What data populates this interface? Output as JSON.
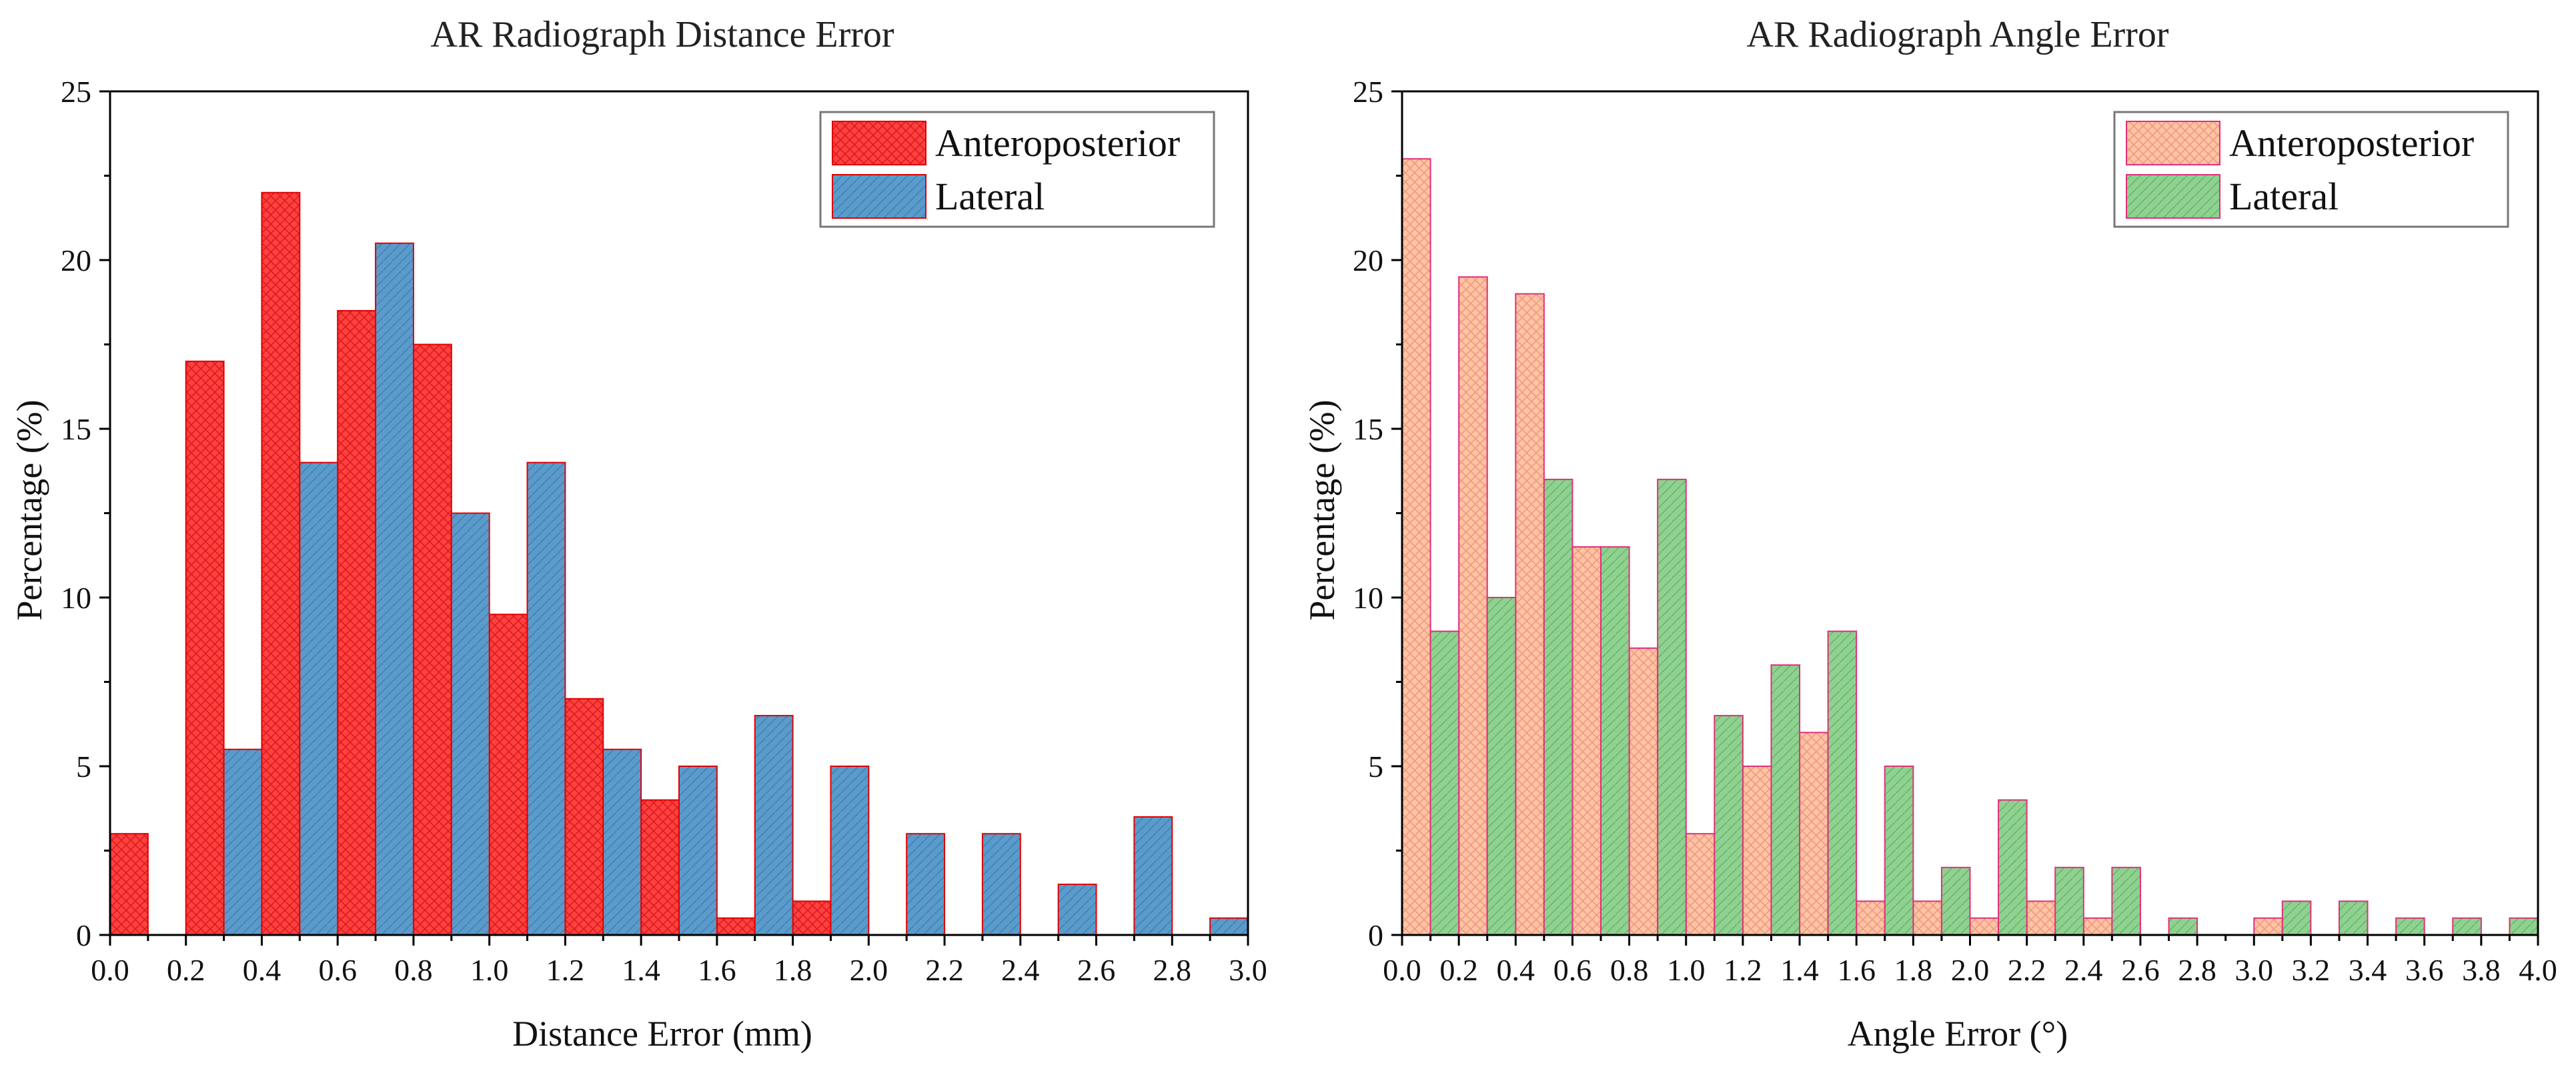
{
  "chart_data": [
    {
      "type": "bar",
      "title": "AR Radiograph Distance Error",
      "xlabel": "Distance Error (mm)",
      "ylabel": "Percentage (%)",
      "xlim": [
        0,
        3.0
      ],
      "ylim": [
        0,
        25
      ],
      "bin_width": 0.1,
      "x_ticks": [
        "0.0",
        "0.2",
        "0.4",
        "0.6",
        "0.8",
        "1.0",
        "1.2",
        "1.4",
        "1.6",
        "1.8",
        "2.0",
        "2.2",
        "2.4",
        "2.6",
        "2.8",
        "3.0"
      ],
      "y_ticks": [
        "0",
        "5",
        "10",
        "15",
        "20",
        "25"
      ],
      "legend": [
        "Anteroposterior",
        "Lateral"
      ],
      "series": [
        {
          "name": "Anteroposterior",
          "color": "#ff4040",
          "hatch_color": "#b80000",
          "bars": [
            {
              "x": 0.0,
              "value": 3
            },
            {
              "x": 0.2,
              "value": 17
            },
            {
              "x": 0.4,
              "value": 22
            },
            {
              "x": 0.6,
              "value": 18.5
            },
            {
              "x": 0.8,
              "value": 17.5
            },
            {
              "x": 1.0,
              "value": 9.5
            },
            {
              "x": 1.2,
              "value": 7
            },
            {
              "x": 1.4,
              "value": 4
            },
            {
              "x": 1.6,
              "value": 0.5
            },
            {
              "x": 1.8,
              "value": 1
            }
          ]
        },
        {
          "name": "Lateral",
          "color": "#5b9bcc",
          "hatch_color": "#2f6f9f",
          "bars": [
            {
              "x": 0.3,
              "value": 5.5
            },
            {
              "x": 0.5,
              "value": 14
            },
            {
              "x": 0.7,
              "value": 20.5
            },
            {
              "x": 0.9,
              "value": 12.5
            },
            {
              "x": 1.1,
              "value": 14
            },
            {
              "x": 1.3,
              "value": 5.5
            },
            {
              "x": 1.5,
              "value": 5
            },
            {
              "x": 1.7,
              "value": 6.5
            },
            {
              "x": 1.9,
              "value": 5
            },
            {
              "x": 2.1,
              "value": 3
            },
            {
              "x": 2.3,
              "value": 3
            },
            {
              "x": 2.5,
              "value": 1.5
            },
            {
              "x": 2.7,
              "value": 3.5
            },
            {
              "x": 2.9,
              "value": 0.5
            }
          ]
        }
      ]
    },
    {
      "type": "bar",
      "title": "AR Radiograph Angle Error",
      "xlabel": "Angle Error (°)",
      "ylabel": "Percentage (%)",
      "xlim": [
        0,
        4.0
      ],
      "ylim": [
        0,
        25
      ],
      "bin_width": 0.1,
      "x_ticks": [
        "0.0",
        "0.2",
        "0.4",
        "0.6",
        "0.8",
        "1.0",
        "1.2",
        "1.4",
        "1.6",
        "1.8",
        "2.0",
        "2.2",
        "2.4",
        "2.6",
        "2.8",
        "3.0",
        "3.2",
        "3.4",
        "3.6",
        "3.8",
        "4.0"
      ],
      "y_ticks": [
        "0",
        "5",
        "10",
        "15",
        "20",
        "25"
      ],
      "legend": [
        "Anteroposterior",
        "Lateral"
      ],
      "series": [
        {
          "name": "Anteroposterior",
          "color": "#ffc4a0",
          "hatch_color": "#e07a7a",
          "bars": [
            {
              "x": 0.0,
              "value": 23
            },
            {
              "x": 0.2,
              "value": 19.5
            },
            {
              "x": 0.4,
              "value": 19
            },
            {
              "x": 0.6,
              "value": 11.5
            },
            {
              "x": 0.8,
              "value": 8.5
            },
            {
              "x": 1.0,
              "value": 3
            },
            {
              "x": 1.2,
              "value": 5
            },
            {
              "x": 1.4,
              "value": 6
            },
            {
              "x": 1.6,
              "value": 1
            },
            {
              "x": 1.8,
              "value": 1
            },
            {
              "x": 2.0,
              "value": 0.5
            },
            {
              "x": 2.2,
              "value": 1
            },
            {
              "x": 2.4,
              "value": 0.5
            },
            {
              "x": 3.0,
              "value": 0.5
            }
          ]
        },
        {
          "name": "Lateral",
          "color": "#8fd18f",
          "hatch_color": "#4f9f5f",
          "bars": [
            {
              "x": 0.1,
              "value": 9
            },
            {
              "x": 0.3,
              "value": 10
            },
            {
              "x": 0.5,
              "value": 13.5
            },
            {
              "x": 0.7,
              "value": 11.5
            },
            {
              "x": 0.9,
              "value": 13.5
            },
            {
              "x": 1.1,
              "value": 6.5
            },
            {
              "x": 1.3,
              "value": 8
            },
            {
              "x": 1.5,
              "value": 9
            },
            {
              "x": 1.7,
              "value": 5
            },
            {
              "x": 1.9,
              "value": 2
            },
            {
              "x": 2.1,
              "value": 4
            },
            {
              "x": 2.3,
              "value": 2
            },
            {
              "x": 2.5,
              "value": 2
            },
            {
              "x": 2.7,
              "value": 0.5
            },
            {
              "x": 3.1,
              "value": 1
            },
            {
              "x": 3.3,
              "value": 1
            },
            {
              "x": 3.5,
              "value": 0.5
            },
            {
              "x": 3.7,
              "value": 0.5
            },
            {
              "x": 3.9,
              "value": 0.5
            }
          ]
        }
      ]
    }
  ]
}
